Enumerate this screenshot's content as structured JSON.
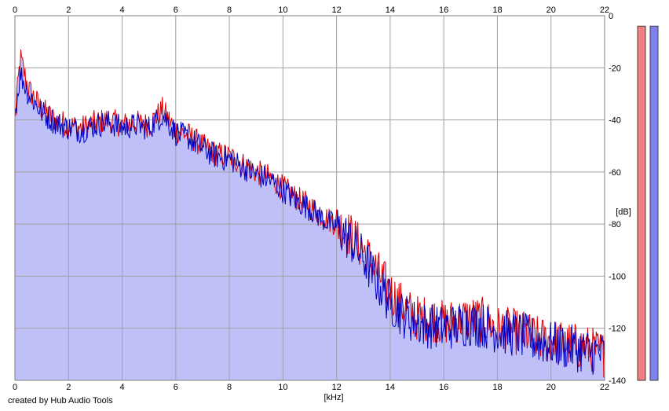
{
  "chart_data": {
    "type": "area",
    "xlabel": "[kHz]",
    "ylabel": "[dB]",
    "xlim": [
      0,
      22
    ],
    "ylim": [
      -140,
      0
    ],
    "x_ticks": [
      "0",
      "2",
      "4",
      "6",
      "8",
      "10",
      "12",
      "14",
      "16",
      "18",
      "20",
      "22"
    ],
    "y_ticks": [
      "0",
      "-20",
      "-40",
      "-60",
      "-80",
      "-100",
      "-120",
      "-140"
    ],
    "grid": true,
    "colors": {
      "fill": "#c0c0f8",
      "left": "#e00000",
      "right": "#0000c0",
      "meter_left": "#f08080",
      "meter_right": "#8080f0",
      "grid": "#a0a0a0"
    },
    "series": [
      {
        "channel": "left",
        "color": "#e00000",
        "x": [
          0,
          0.2,
          0.5,
          1,
          1.5,
          2,
          2.5,
          3,
          3.5,
          4,
          4.5,
          5,
          5.5,
          6,
          6.5,
          7,
          7.5,
          8,
          8.5,
          9,
          9.5,
          10,
          10.5,
          11,
          11.5,
          12,
          12.5,
          13,
          13.5,
          14,
          14.5,
          15,
          15.5,
          16,
          16.5,
          17,
          17.5,
          18,
          18.5,
          19,
          19.5,
          20,
          20.5,
          21,
          21.5,
          22
        ],
        "values": [
          -40,
          -16,
          -28,
          -36,
          -40,
          -42,
          -43,
          -41,
          -40,
          -42,
          -41,
          -42,
          -36,
          -44,
          -46,
          -50,
          -53,
          -54,
          -57,
          -60,
          -62,
          -66,
          -70,
          -73,
          -77,
          -80,
          -84,
          -90,
          -98,
          -106,
          -112,
          -116,
          -116,
          -118,
          -117,
          -116,
          -117,
          -120,
          -121,
          -122,
          -124,
          -125,
          -126,
          -127,
          -128,
          -130
        ]
      },
      {
        "channel": "right",
        "color": "#0000c0",
        "x": [
          0,
          0.2,
          0.5,
          1,
          1.5,
          2,
          2.5,
          3,
          3.5,
          4,
          4.5,
          5,
          5.5,
          6,
          6.5,
          7,
          7.5,
          8,
          8.5,
          9,
          9.5,
          10,
          10.5,
          11,
          11.5,
          12,
          12.5,
          13,
          13.5,
          14,
          14.5,
          15,
          15.5,
          16,
          16.5,
          17,
          17.5,
          18,
          18.5,
          19,
          19.5,
          20,
          20.5,
          21,
          21.5,
          22
        ],
        "values": [
          -38,
          -22,
          -30,
          -37,
          -41,
          -43,
          -44,
          -42,
          -41,
          -43,
          -42,
          -43,
          -38,
          -45,
          -47,
          -51,
          -54,
          -55,
          -58,
          -61,
          -63,
          -67,
          -71,
          -74,
          -78,
          -81,
          -86,
          -93,
          -102,
          -110,
          -115,
          -118,
          -119,
          -120,
          -119,
          -118,
          -119,
          -121,
          -122,
          -123,
          -125,
          -126,
          -127,
          -128,
          -129,
          -130
        ]
      }
    ],
    "levels": {
      "left": -4,
      "right": -4
    }
  },
  "credit": "created by Hub Audio Tools"
}
